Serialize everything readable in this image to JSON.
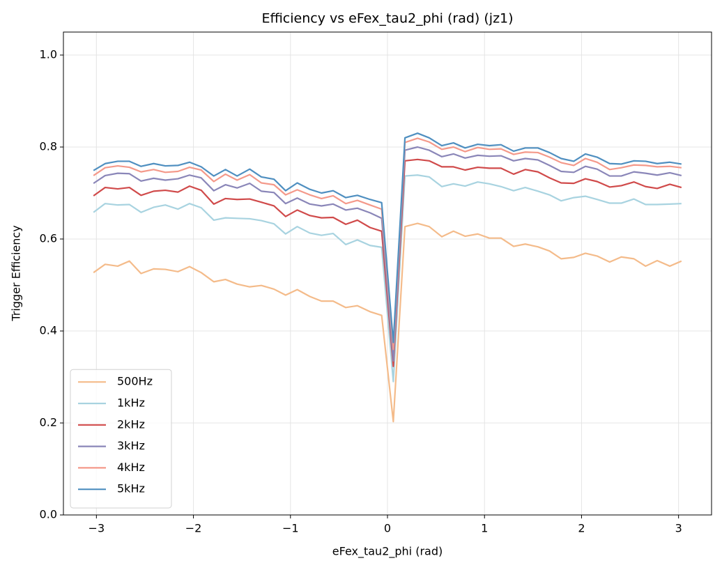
{
  "chart_data": {
    "type": "line",
    "title": "Efficiency vs eFex_tau2_phi (rad) (jz1)",
    "xlabel": "eFex_tau2_phi (rad)",
    "ylabel": "Trigger Efficiency",
    "x": [
      -3.03,
      -2.91,
      -2.78,
      -2.66,
      -2.54,
      -2.41,
      -2.29,
      -2.16,
      -2.04,
      -1.92,
      -1.79,
      -1.67,
      -1.55,
      -1.42,
      -1.3,
      -1.17,
      -1.05,
      -0.93,
      -0.8,
      -0.68,
      -0.56,
      -0.43,
      -0.31,
      -0.18,
      -0.06,
      0.06,
      0.18,
      0.31,
      0.43,
      0.56,
      0.68,
      0.8,
      0.93,
      1.05,
      1.17,
      1.3,
      1.42,
      1.55,
      1.67,
      1.79,
      1.92,
      2.04,
      2.16,
      2.29,
      2.41,
      2.54,
      2.66,
      2.78,
      2.91,
      3.03
    ],
    "series": [
      {
        "name": "500Hz",
        "color": "#f4bb8a",
        "values": [
          0.527,
          0.545,
          0.541,
          0.552,
          0.525,
          0.535,
          0.534,
          0.529,
          0.54,
          0.527,
          0.507,
          0.512,
          0.502,
          0.496,
          0.499,
          0.491,
          0.478,
          0.49,
          0.475,
          0.465,
          0.465,
          0.451,
          0.455,
          0.442,
          0.434,
          0.203,
          0.627,
          0.634,
          0.627,
          0.605,
          0.617,
          0.606,
          0.611,
          0.602,
          0.602,
          0.584,
          0.589,
          0.583,
          0.574,
          0.557,
          0.56,
          0.569,
          0.563,
          0.55,
          0.561,
          0.557,
          0.541,
          0.553,
          0.541,
          0.552
        ]
      },
      {
        "name": "1kHz",
        "color": "#a8d3e0",
        "values": [
          0.658,
          0.677,
          0.674,
          0.675,
          0.658,
          0.669,
          0.674,
          0.665,
          0.677,
          0.668,
          0.641,
          0.646,
          0.645,
          0.644,
          0.64,
          0.633,
          0.611,
          0.627,
          0.613,
          0.608,
          0.612,
          0.588,
          0.598,
          0.586,
          0.582,
          0.29,
          0.737,
          0.739,
          0.735,
          0.714,
          0.72,
          0.715,
          0.724,
          0.72,
          0.714,
          0.705,
          0.712,
          0.704,
          0.696,
          0.683,
          0.69,
          0.693,
          0.686,
          0.678,
          0.678,
          0.687,
          0.675,
          0.675,
          0.676,
          0.677
        ]
      },
      {
        "name": "2kHz",
        "color": "#d04a4a",
        "values": [
          0.694,
          0.712,
          0.709,
          0.712,
          0.695,
          0.704,
          0.706,
          0.702,
          0.715,
          0.706,
          0.676,
          0.688,
          0.686,
          0.687,
          0.68,
          0.672,
          0.649,
          0.663,
          0.651,
          0.646,
          0.647,
          0.632,
          0.641,
          0.625,
          0.617,
          0.323,
          0.77,
          0.773,
          0.77,
          0.757,
          0.757,
          0.75,
          0.756,
          0.754,
          0.754,
          0.741,
          0.751,
          0.746,
          0.733,
          0.722,
          0.721,
          0.731,
          0.725,
          0.713,
          0.716,
          0.724,
          0.714,
          0.71,
          0.719,
          0.712
        ]
      },
      {
        "name": "3kHz",
        "color": "#8a86b8",
        "values": [
          0.721,
          0.738,
          0.743,
          0.742,
          0.726,
          0.732,
          0.728,
          0.731,
          0.739,
          0.733,
          0.705,
          0.718,
          0.711,
          0.721,
          0.704,
          0.701,
          0.677,
          0.689,
          0.676,
          0.672,
          0.676,
          0.663,
          0.667,
          0.657,
          0.645,
          0.335,
          0.793,
          0.8,
          0.793,
          0.779,
          0.785,
          0.776,
          0.782,
          0.78,
          0.781,
          0.77,
          0.775,
          0.772,
          0.76,
          0.747,
          0.745,
          0.758,
          0.752,
          0.737,
          0.737,
          0.746,
          0.743,
          0.739,
          0.744,
          0.738
        ]
      },
      {
        "name": "4kHz",
        "color": "#f4998a",
        "values": [
          0.738,
          0.755,
          0.759,
          0.756,
          0.746,
          0.751,
          0.745,
          0.747,
          0.756,
          0.75,
          0.725,
          0.741,
          0.728,
          0.74,
          0.722,
          0.718,
          0.696,
          0.707,
          0.696,
          0.688,
          0.694,
          0.677,
          0.684,
          0.674,
          0.665,
          0.36,
          0.81,
          0.819,
          0.811,
          0.795,
          0.8,
          0.79,
          0.799,
          0.795,
          0.796,
          0.784,
          0.789,
          0.788,
          0.778,
          0.766,
          0.76,
          0.775,
          0.767,
          0.751,
          0.755,
          0.761,
          0.76,
          0.757,
          0.758,
          0.755
        ]
      },
      {
        "name": "5kHz",
        "color": "#4f8fc0",
        "values": [
          0.749,
          0.764,
          0.769,
          0.769,
          0.758,
          0.764,
          0.759,
          0.76,
          0.767,
          0.757,
          0.737,
          0.751,
          0.737,
          0.752,
          0.735,
          0.73,
          0.705,
          0.722,
          0.708,
          0.7,
          0.705,
          0.69,
          0.695,
          0.686,
          0.679,
          0.375,
          0.82,
          0.83,
          0.82,
          0.803,
          0.809,
          0.798,
          0.806,
          0.803,
          0.805,
          0.791,
          0.798,
          0.798,
          0.788,
          0.775,
          0.769,
          0.785,
          0.778,
          0.764,
          0.763,
          0.77,
          0.769,
          0.764,
          0.767,
          0.763
        ]
      }
    ],
    "xlim": [
      -3.34,
      3.34
    ],
    "ylim": [
      0,
      1.05
    ],
    "xticks": [
      {
        "value": -3,
        "label": "−3"
      },
      {
        "value": -2,
        "label": "−2"
      },
      {
        "value": -1,
        "label": "−1"
      },
      0,
      1,
      2,
      3
    ],
    "yticks": [
      {
        "value": 0,
        "label": "0.0"
      },
      {
        "value": 0.2,
        "label": "0.2"
      },
      {
        "value": 0.4,
        "label": "0.4"
      },
      {
        "value": 0.6,
        "label": "0.6"
      },
      {
        "value": 0.8,
        "label": "0.8"
      },
      {
        "value": 1,
        "label": "1.0"
      }
    ],
    "grid": true,
    "legend": "lower left"
  }
}
